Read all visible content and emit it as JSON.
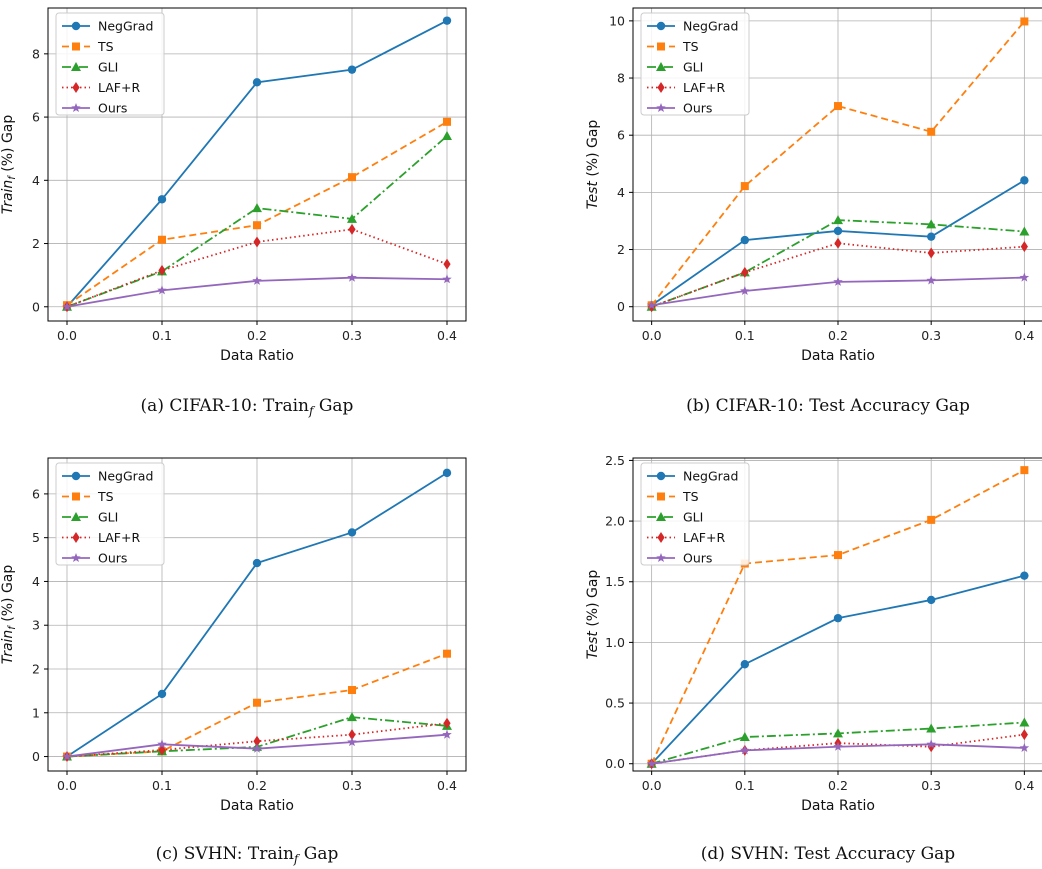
{
  "chart_data": [
    {
      "type": "line",
      "caption": "(a) CIFAR-10: Train_f Gap",
      "caption_main": "(a) CIFAR-10: Train",
      "caption_sub": "f",
      "caption_end": " Gap",
      "xlabel": "Data Ratio",
      "ylabel_main": "Train",
      "ylabel_sub": "f",
      "ylabel_end": " (%) Gap",
      "x": [
        0.0,
        0.1,
        0.2,
        0.3,
        0.4
      ],
      "x_ticks": [
        "0.0",
        "0.1",
        "0.2",
        "0.3",
        "0.4"
      ],
      "y_ticks": [
        0,
        2,
        4,
        6,
        8
      ],
      "y_tick_labels": [
        "0",
        "2",
        "4",
        "6",
        "8"
      ],
      "ylim": [
        -0.45,
        9.45
      ],
      "grid": true,
      "legend_position": "top-left",
      "series": [
        {
          "name": "NegGrad",
          "values": [
            0.0,
            3.4,
            7.1,
            7.5,
            9.05
          ]
        },
        {
          "name": "TS",
          "values": [
            0.05,
            2.12,
            2.58,
            4.1,
            5.85
          ]
        },
        {
          "name": "GLI",
          "values": [
            0.0,
            1.12,
            3.12,
            2.78,
            5.4
          ]
        },
        {
          "name": "LAF+R",
          "values": [
            0.0,
            1.15,
            2.05,
            2.45,
            1.35
          ]
        },
        {
          "name": "Ours",
          "values": [
            0.0,
            0.52,
            0.82,
            0.92,
            0.87
          ]
        }
      ]
    },
    {
      "type": "line",
      "caption": "(b) CIFAR-10: Test Accuracy Gap",
      "caption_main": "(b) CIFAR-10: Test Accuracy Gap",
      "caption_sub": "",
      "caption_end": "",
      "xlabel": "Data Ratio",
      "ylabel_main": "Test",
      "ylabel_sub": "",
      "ylabel_end": " (%) Gap",
      "x": [
        0.0,
        0.1,
        0.2,
        0.3,
        0.4
      ],
      "x_ticks": [
        "0.0",
        "0.1",
        "0.2",
        "0.3",
        "0.4"
      ],
      "y_ticks": [
        0,
        2,
        4,
        6,
        8,
        10
      ],
      "y_tick_labels": [
        "0",
        "2",
        "4",
        "6",
        "8",
        "10"
      ],
      "ylim": [
        -0.5,
        10.45
      ],
      "grid": true,
      "legend_position": "top-left",
      "series": [
        {
          "name": "NegGrad",
          "values": [
            0.05,
            2.33,
            2.65,
            2.45,
            4.42
          ]
        },
        {
          "name": "TS",
          "values": [
            0.05,
            4.22,
            7.02,
            6.12,
            9.98
          ]
        },
        {
          "name": "GLI",
          "values": [
            0.0,
            1.2,
            3.03,
            2.88,
            2.63
          ]
        },
        {
          "name": "LAF+R",
          "values": [
            0.0,
            1.2,
            2.22,
            1.88,
            2.1
          ]
        },
        {
          "name": "Ours",
          "values": [
            0.05,
            0.55,
            0.87,
            0.92,
            1.02
          ]
        }
      ]
    },
    {
      "type": "line",
      "caption": "(c) SVHN: Train_f Gap",
      "caption_main": "(c) SVHN: Train",
      "caption_sub": "f",
      "caption_end": " Gap",
      "xlabel": "Data Ratio",
      "ylabel_main": "Train",
      "ylabel_sub": "f",
      "ylabel_end": " (%) Gap",
      "x": [
        0.0,
        0.1,
        0.2,
        0.3,
        0.4
      ],
      "x_ticks": [
        "0.0",
        "0.1",
        "0.2",
        "0.3",
        "0.4"
      ],
      "y_ticks": [
        0,
        1,
        2,
        3,
        4,
        5,
        6
      ],
      "y_tick_labels": [
        "0",
        "1",
        "2",
        "3",
        "4",
        "5",
        "6"
      ],
      "ylim": [
        -0.33,
        6.82
      ],
      "grid": true,
      "legend_position": "top-left",
      "series": [
        {
          "name": "NegGrad",
          "values": [
            0.0,
            1.43,
            4.42,
            5.12,
            6.48
          ]
        },
        {
          "name": "TS",
          "values": [
            0.0,
            0.12,
            1.23,
            1.52,
            2.35
          ]
        },
        {
          "name": "GLI",
          "values": [
            0.0,
            0.12,
            0.22,
            0.9,
            0.7
          ]
        },
        {
          "name": "LAF+R",
          "values": [
            0.0,
            0.15,
            0.35,
            0.5,
            0.76
          ]
        },
        {
          "name": "Ours",
          "values": [
            0.0,
            0.28,
            0.18,
            0.33,
            0.5
          ]
        }
      ]
    },
    {
      "type": "line",
      "caption": "(d) SVHN: Test Accuracy Gap",
      "caption_main": "(d) SVHN: Test Accuracy Gap",
      "caption_sub": "",
      "caption_end": "",
      "xlabel": "Data Ratio",
      "ylabel_main": "Test",
      "ylabel_sub": "",
      "ylabel_end": " (%) Gap",
      "x": [
        0.0,
        0.1,
        0.2,
        0.3,
        0.4
      ],
      "x_ticks": [
        "0.0",
        "0.1",
        "0.2",
        "0.3",
        "0.4"
      ],
      "y_ticks": [
        0,
        0.5,
        1,
        1.5,
        2,
        2.5
      ],
      "y_tick_labels": [
        "0.0",
        "0.5",
        "1.0",
        "1.5",
        "2.0",
        "2.5"
      ],
      "ylim": [
        -0.06,
        2.52
      ],
      "grid": true,
      "legend_position": "top-left",
      "series": [
        {
          "name": "NegGrad",
          "values": [
            0.0,
            0.82,
            1.2,
            1.35,
            1.55
          ]
        },
        {
          "name": "TS",
          "values": [
            0.0,
            1.65,
            1.72,
            2.01,
            2.42
          ]
        },
        {
          "name": "GLI",
          "values": [
            0.0,
            0.22,
            0.25,
            0.29,
            0.34
          ]
        },
        {
          "name": "LAF+R",
          "values": [
            0.0,
            0.11,
            0.17,
            0.14,
            0.24
          ]
        },
        {
          "name": "Ours",
          "values": [
            0.0,
            0.11,
            0.14,
            0.16,
            0.13
          ]
        }
      ]
    }
  ],
  "series_styles": [
    {
      "color": "#1f77b4",
      "dash": "",
      "marker": "circle"
    },
    {
      "color": "#ff7f0e",
      "dash": "7,4",
      "marker": "square"
    },
    {
      "color": "#2ca02c",
      "dash": "9,3,2,3",
      "marker": "triangle"
    },
    {
      "color": "#d62728",
      "dash": "1.5,3",
      "marker": "diamond"
    },
    {
      "color": "#9467bd",
      "dash": "",
      "marker": "star"
    }
  ]
}
